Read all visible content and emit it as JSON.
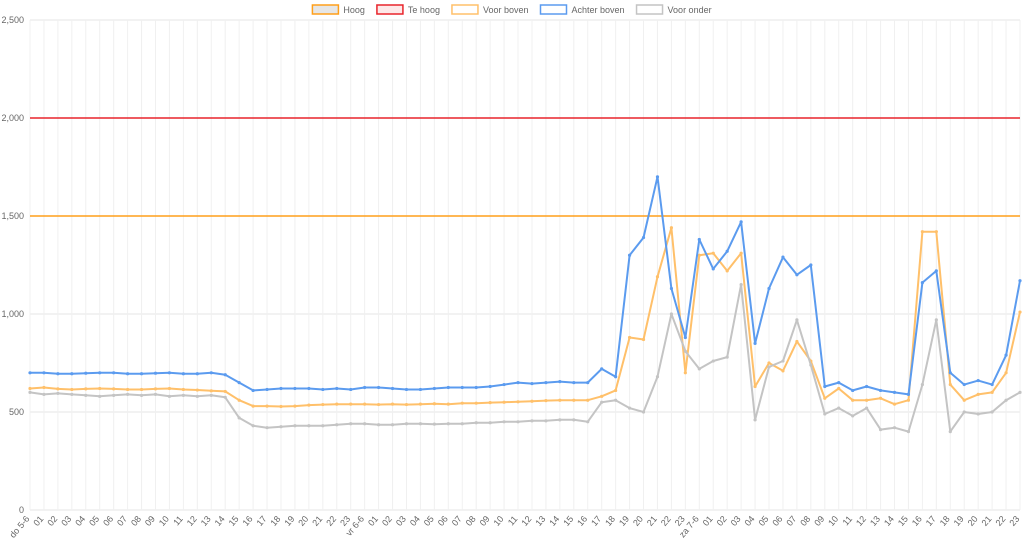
{
  "chart_data": {
    "type": "line",
    "categories": [
      "do 5-6",
      "01",
      "02",
      "03",
      "04",
      "05",
      "06",
      "07",
      "08",
      "09",
      "10",
      "11",
      "12",
      "13",
      "14",
      "15",
      "16",
      "17",
      "18",
      "19",
      "20",
      "21",
      "22",
      "23",
      "vr 6-6",
      "01",
      "02",
      "03",
      "04",
      "05",
      "06",
      "07",
      "08",
      "09",
      "10",
      "11",
      "12",
      "13",
      "14",
      "15",
      "16",
      "17",
      "18",
      "19",
      "20",
      "21",
      "22",
      "23",
      "za 7-6",
      "01",
      "02",
      "03",
      "04",
      "05",
      "06",
      "07",
      "08",
      "09",
      "10",
      "11",
      "12",
      "13",
      "14",
      "15",
      "16",
      "17",
      "18",
      "19",
      "20",
      "21",
      "22",
      "23"
    ],
    "thresholds": [
      {
        "name": "Hoog",
        "value": 1500,
        "color": "#ff9f1a"
      },
      {
        "name": "Te hoog",
        "value": 2000,
        "color": "#e8242b"
      }
    ],
    "series": [
      {
        "name": "Voor boven",
        "color": "#ffc06a",
        "values": [
          620,
          625,
          618,
          615,
          618,
          620,
          618,
          615,
          615,
          618,
          620,
          615,
          612,
          608,
          605,
          560,
          530,
          530,
          528,
          530,
          535,
          538,
          540,
          540,
          540,
          538,
          540,
          538,
          540,
          542,
          540,
          545,
          545,
          548,
          550,
          552,
          555,
          558,
          560,
          560,
          560,
          580,
          610,
          880,
          870,
          1190,
          1440,
          700,
          1300,
          1310,
          1220,
          1310,
          630,
          750,
          710,
          860,
          760,
          570,
          620,
          560,
          560,
          570,
          540,
          560,
          1420,
          1420,
          640,
          560,
          590,
          600,
          700,
          1010
        ]
      },
      {
        "name": "Achter boven",
        "color": "#5b9bef",
        "values": [
          700,
          700,
          695,
          695,
          698,
          700,
          700,
          695,
          695,
          698,
          700,
          695,
          695,
          700,
          690,
          650,
          610,
          615,
          620,
          620,
          620,
          615,
          620,
          615,
          625,
          625,
          620,
          615,
          615,
          620,
          625,
          625,
          625,
          630,
          640,
          650,
          645,
          650,
          655,
          650,
          650,
          720,
          680,
          1300,
          1390,
          1700,
          1130,
          880,
          1380,
          1230,
          1320,
          1470,
          850,
          1130,
          1290,
          1200,
          1250,
          630,
          650,
          610,
          630,
          610,
          600,
          590,
          1160,
          1220,
          700,
          640,
          660,
          640,
          790,
          1170
        ]
      },
      {
        "name": "Voor onder",
        "color": "#c4c4c4",
        "values": [
          600,
          590,
          595,
          590,
          585,
          580,
          585,
          590,
          585,
          590,
          580,
          585,
          580,
          585,
          575,
          470,
          430,
          420,
          425,
          430,
          430,
          430,
          435,
          440,
          440,
          435,
          435,
          440,
          440,
          438,
          440,
          440,
          445,
          445,
          450,
          450,
          455,
          455,
          460,
          460,
          450,
          550,
          560,
          520,
          500,
          680,
          1000,
          810,
          720,
          760,
          780,
          1150,
          460,
          730,
          760,
          970,
          740,
          490,
          520,
          480,
          520,
          410,
          420,
          400,
          640,
          970,
          400,
          500,
          490,
          500,
          560,
          600
        ]
      }
    ],
    "ylim": [
      0,
      2500
    ],
    "yticks": [
      0,
      500,
      {
        "value": 1000,
        "label": "1,000"
      },
      {
        "value": 1500,
        "label": "1,500"
      },
      {
        "value": 2000,
        "label": "2,000"
      },
      {
        "value": 2500,
        "label": "2,500"
      }
    ],
    "grid": true,
    "legend": "top"
  }
}
